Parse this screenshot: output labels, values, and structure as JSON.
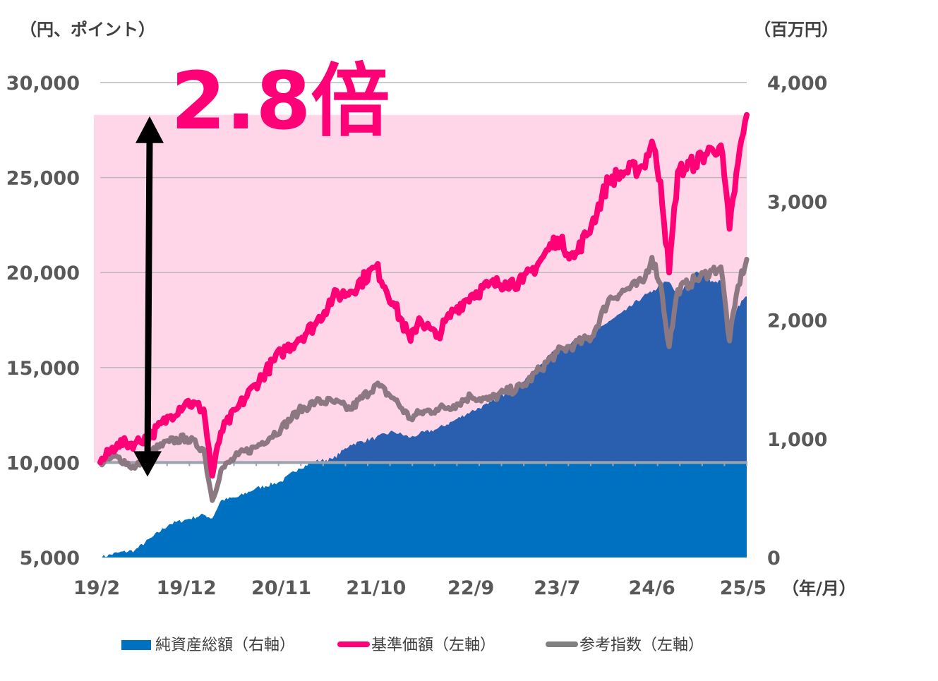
{
  "chart_data": {
    "type": "line",
    "title": "",
    "left_axis_unit": "（円、ポイント）",
    "right_axis_unit": "（百万円）",
    "x_unit": "（年/月）",
    "left_ylim": [
      5000,
      30000
    ],
    "right_ylim": [
      0,
      4000
    ],
    "left_ticks": [
      "30,000",
      "25,000",
      "20,000",
      "15,000",
      "10,000",
      "5,000"
    ],
    "right_ticks": [
      "4,000",
      "3,000",
      "2,000",
      "1,000",
      "0"
    ],
    "x_ticks": [
      "19/2",
      "19/12",
      "20/11",
      "21/10",
      "22/9",
      "23/7",
      "24/6",
      "25/5"
    ],
    "annotation": "2.8倍",
    "annotation_range": [
      10000,
      28300
    ],
    "colors": {
      "net_assets": "#0070c0",
      "nav": "#ff0077",
      "benchmark": "#8c7880",
      "highlight": "#ffd6e7"
    },
    "legend": [
      {
        "label": "純資産総額（右軸）",
        "color": "#0070c0",
        "kind": "box"
      },
      {
        "label": "基準価額（左軸）",
        "color": "#ff0077",
        "kind": "line"
      },
      {
        "label": "参考指数（左軸）",
        "color": "#808080",
        "kind": "line"
      }
    ],
    "series": [
      {
        "name": "純資産総額（右軸）",
        "axis": "right",
        "kind": "area",
        "x": [
          "19/2",
          "19/4",
          "19/6",
          "19/8",
          "19/10",
          "19/12",
          "20/2",
          "20/3",
          "20/4",
          "20/6",
          "20/8",
          "20/11",
          "21/1",
          "21/3",
          "21/5",
          "21/7",
          "21/10",
          "21/12",
          "22/2",
          "22/3",
          "22/5",
          "22/7",
          "22/9",
          "22/11",
          "23/1",
          "23/3",
          "23/5",
          "23/7",
          "23/9",
          "23/11",
          "24/1",
          "24/3",
          "24/5",
          "24/6",
          "24/7",
          "24/8",
          "24/9",
          "24/11",
          "25/1",
          "25/2",
          "25/3",
          "25/4",
          "25/5"
        ],
        "values": [
          0,
          40,
          60,
          170,
          280,
          320,
          360,
          330,
          480,
          510,
          580,
          640,
          750,
          810,
          830,
          950,
          1010,
          1060,
          1010,
          1040,
          1080,
          1150,
          1230,
          1290,
          1380,
          1480,
          1620,
          1760,
          1810,
          1860,
          1990,
          2080,
          2200,
          2230,
          2300,
          2320,
          2200,
          2400,
          2330,
          2330,
          1880,
          2120,
          2200
        ]
      },
      {
        "name": "基準価額（左軸）",
        "axis": "left",
        "kind": "line",
        "x": [
          "19/2",
          "19/4",
          "19/6",
          "19/8",
          "19/10",
          "19/12",
          "20/2",
          "20/3",
          "20/4",
          "20/6",
          "20/8",
          "20/11",
          "21/1",
          "21/3",
          "21/5",
          "21/7",
          "21/10",
          "21/12",
          "22/2",
          "22/3",
          "22/5",
          "22/7",
          "22/9",
          "22/11",
          "23/1",
          "23/3",
          "23/5",
          "23/7",
          "23/9",
          "23/11",
          "24/1",
          "24/3",
          "24/5",
          "24/6",
          "24/7",
          "24/8",
          "24/9",
          "24/11",
          "25/1",
          "25/2",
          "25/3",
          "25/4",
          "25/5"
        ],
        "values": [
          10000,
          11000,
          11000,
          11500,
          12400,
          13200,
          12800,
          9300,
          11600,
          12900,
          14100,
          15800,
          16500,
          17300,
          18700,
          19000,
          20300,
          18400,
          16400,
          17600,
          16600,
          18000,
          18800,
          19300,
          19500,
          19500,
          20600,
          21800,
          20800,
          22500,
          24900,
          25300,
          25600,
          26900,
          24800,
          20000,
          25300,
          25800,
          26500,
          26700,
          22300,
          25800,
          28300
        ]
      },
      {
        "name": "参考指数（左軸）",
        "axis": "left",
        "kind": "line",
        "x": [
          "19/2",
          "19/4",
          "19/6",
          "19/8",
          "19/10",
          "19/12",
          "20/2",
          "20/3",
          "20/4",
          "20/6",
          "20/8",
          "20/11",
          "21/1",
          "21/3",
          "21/5",
          "21/7",
          "21/10",
          "21/12",
          "22/2",
          "22/3",
          "22/5",
          "22/7",
          "22/9",
          "22/11",
          "23/1",
          "23/3",
          "23/5",
          "23/7",
          "23/9",
          "23/11",
          "24/1",
          "24/3",
          "24/5",
          "24/6",
          "24/7",
          "24/8",
          "24/9",
          "24/11",
          "25/1",
          "25/2",
          "25/3",
          "25/4",
          "25/5"
        ],
        "values": [
          10000,
          10300,
          9700,
          10600,
          11100,
          11300,
          10700,
          8000,
          9600,
          10400,
          10800,
          11800,
          12700,
          13200,
          13200,
          12800,
          14100,
          13400,
          12300,
          12600,
          12800,
          13000,
          13500,
          13300,
          13700,
          14000,
          14900,
          15800,
          16200,
          16600,
          18600,
          19100,
          19500,
          20800,
          19400,
          16100,
          19100,
          19600,
          20100,
          20300,
          16400,
          19300,
          20700
        ]
      }
    ]
  }
}
